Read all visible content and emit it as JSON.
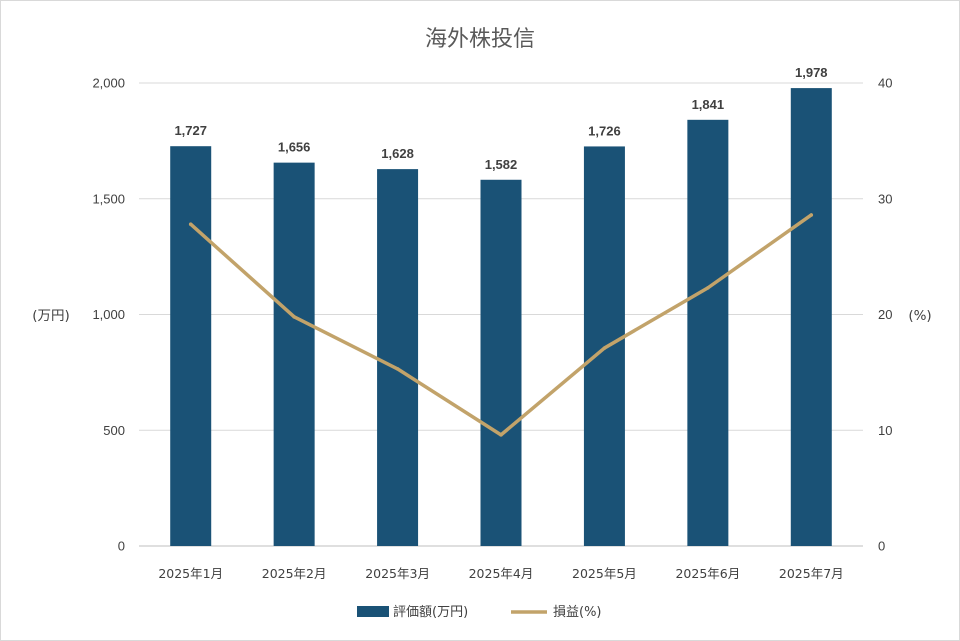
{
  "chart_data": {
    "type": "bar",
    "title": "海外株投信",
    "categories": [
      "2025年1月",
      "2025年2月",
      "2025年3月",
      "2025年4月",
      "2025年5月",
      "2025年6月",
      "2025年7月"
    ],
    "series": [
      {
        "name": "評価額(万円)",
        "type": "bar",
        "axis": "left",
        "color": "#1a5276",
        "values": [
          1727,
          1656,
          1628,
          1582,
          1726,
          1841,
          1978
        ],
        "labels": [
          "1,727",
          "1,656",
          "1,628",
          "1,582",
          "1,726",
          "1,841",
          "1,978"
        ]
      },
      {
        "name": "損益(%)",
        "type": "line",
        "axis": "right",
        "color": "#c2a36a",
        "values": [
          27.8,
          19.8,
          15.3,
          9.6,
          17.1,
          22.3,
          28.6
        ]
      }
    ],
    "ylabel": "(万円)",
    "y2label": "(%)",
    "ylim": [
      0,
      2000
    ],
    "y2lim": [
      0,
      40
    ],
    "yticks": [
      0,
      500,
      1000,
      1500,
      2000
    ],
    "yticklabels": [
      "0",
      "500",
      "1,000",
      "1,500",
      "2,000"
    ],
    "y2ticks": [
      0,
      10,
      20,
      30,
      40
    ],
    "y2ticklabels": [
      "0",
      "10",
      "20",
      "30",
      "40"
    ],
    "grid": true,
    "legend": "bottom"
  }
}
